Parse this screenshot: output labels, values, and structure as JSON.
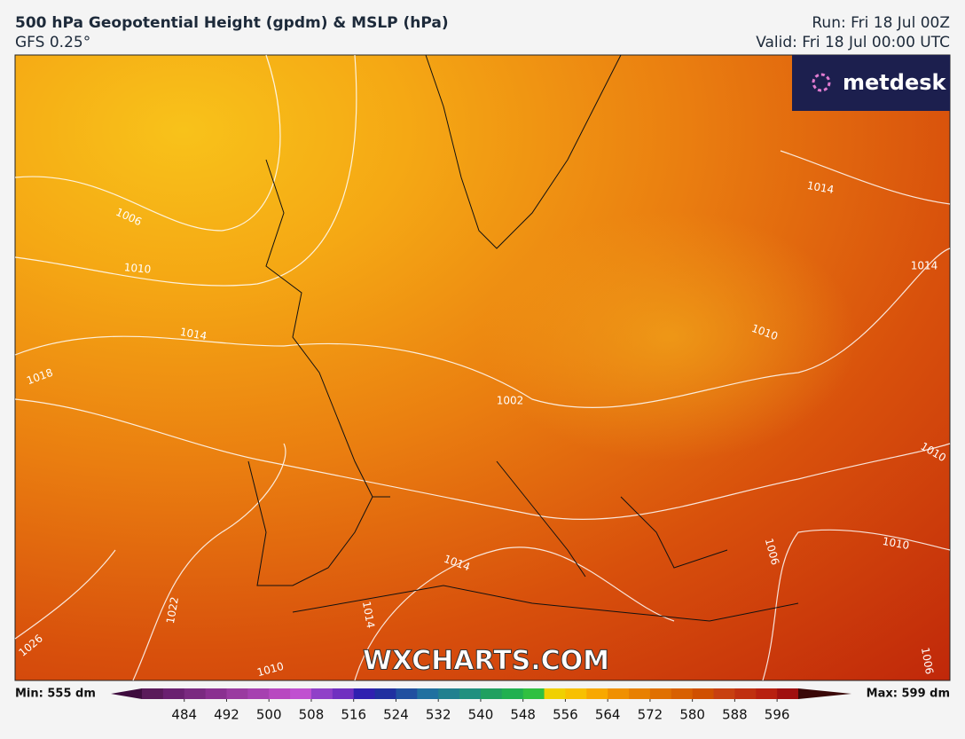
{
  "header": {
    "title": "500 hPa Geopotential Height (gpdm) & MSLP (hPa)",
    "subtitle": "GFS 0.25°",
    "run": "Run: Fri 18 Jul 00Z",
    "valid": "Valid: Fri 18 Jul 00:00 UTC"
  },
  "logo": "metdesk",
  "watermark": "WXCHARTS.COM",
  "isobar_labels": [
    "1006",
    "1010",
    "1014",
    "1018",
    "1022",
    "1026",
    "1010",
    "1014",
    "1014",
    "1014",
    "1014",
    "1010",
    "1010",
    "1010",
    "1006",
    "1006",
    "1002"
  ],
  "colorbar": {
    "min_label": "Min: 555 dm",
    "max_label": "Max: 599 dm",
    "range": [
      476,
      600
    ],
    "ticks": [
      484,
      492,
      500,
      508,
      516,
      524,
      532,
      540,
      548,
      556,
      564,
      572,
      580,
      588,
      596
    ],
    "colors": [
      "#5a1a5a",
      "#6a2070",
      "#7a2a80",
      "#8a3090",
      "#9a3aa0",
      "#a640b0",
      "#b848c0",
      "#c050d0",
      "#9040c8",
      "#7030c0",
      "#3020b0",
      "#2030a0",
      "#2050a0",
      "#2070a0",
      "#20808f",
      "#20907f",
      "#20a060",
      "#20b050",
      "#30c040",
      "#f0d000",
      "#f8c000",
      "#f8a800",
      "#f09000",
      "#e88000",
      "#e07000",
      "#d86000",
      "#d05000",
      "#c84010",
      "#c03010",
      "#b82010",
      "#a01010"
    ],
    "under_color": "#3e0c3e",
    "over_color": "#3a0808"
  }
}
